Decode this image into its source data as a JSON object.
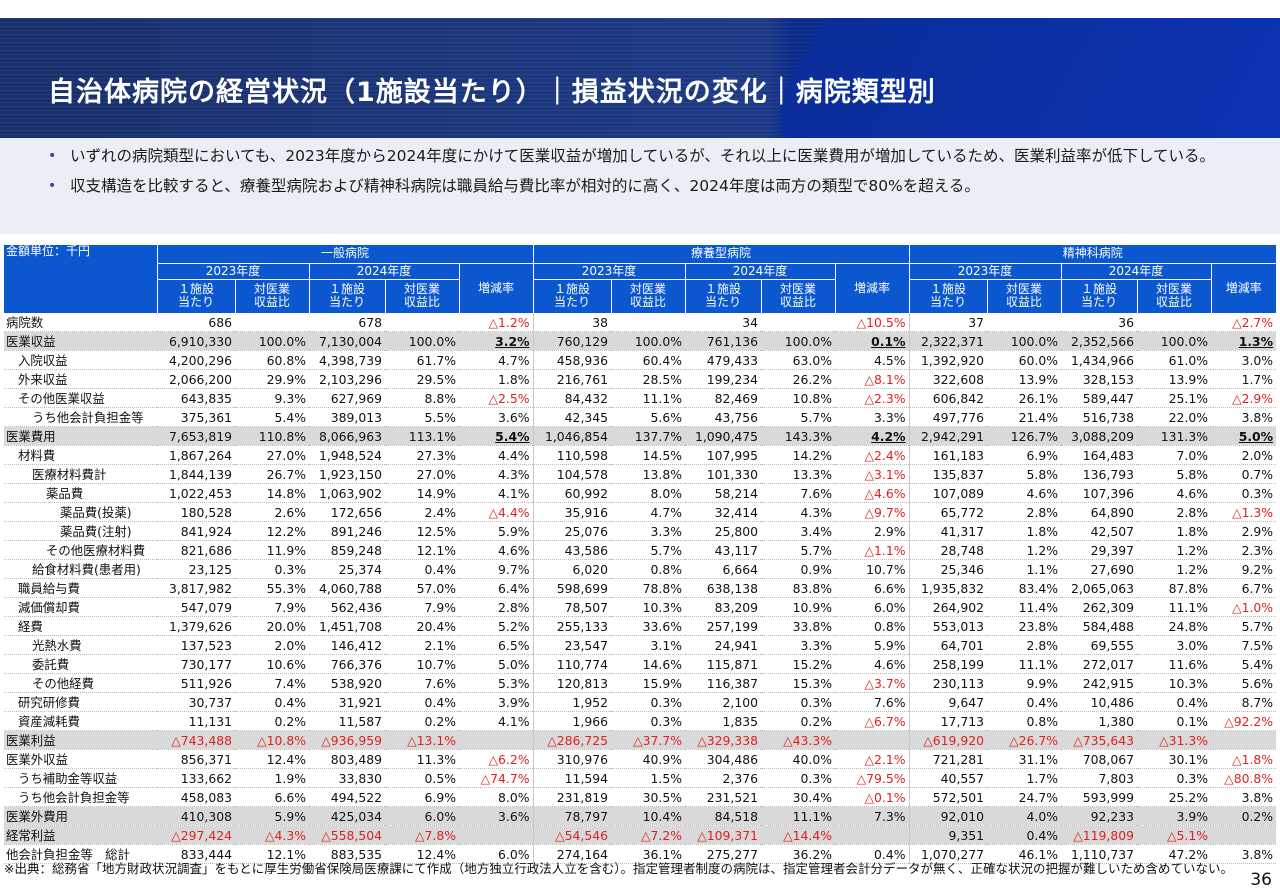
{
  "title": "自治体病院の経営状況（1施設当たり）｜損益状況の変化｜病院類型別",
  "bullets": [
    "いずれの病院類型においても、2023年度から2024年度にかけて医業収益が増加しているが、それ以上に医業費用が増加しているため、医業利益率が低下している。",
    "収支構造を比較すると、療養型病院および精神科病院は職員給与費比率が相対的に高く、2024年度は両方の類型で80%を超える。"
  ],
  "table": {
    "unit": "金額単位：千円",
    "groups": [
      "一般病院",
      "療養型病院",
      "精神科病院"
    ],
    "years": [
      "2023年度",
      "2024年度"
    ],
    "col_per": "１施設当たり",
    "col_ratio": "対医業収益比",
    "col_change": "増減率",
    "rows": [
      {
        "label": "病院数",
        "indent": 0,
        "shade": false,
        "cells": [
          "686",
          "",
          "678",
          "",
          "△1.2%",
          "38",
          "",
          "34",
          "",
          "△10.5%",
          "37",
          "",
          "36",
          "",
          "△2.7%"
        ],
        "styles": [
          "",
          "",
          "",
          "",
          "n",
          "",
          "",
          "",
          "",
          "n",
          "",
          "",
          "",
          "",
          "n"
        ]
      },
      {
        "label": "医業収益",
        "indent": 0,
        "shade": true,
        "cells": [
          "6,910,330",
          "100.0%",
          "7,130,004",
          "100.0%",
          "3.2%",
          "760,129",
          "100.0%",
          "761,136",
          "100.0%",
          "0.1%",
          "2,322,371",
          "100.0%",
          "2,352,566",
          "100.0%",
          "1.3%"
        ],
        "styles": [
          "",
          "",
          "",
          "",
          "b",
          "",
          "",
          "",
          "",
          "b",
          "",
          "",
          "",
          "",
          "b"
        ]
      },
      {
        "label": "入院収益",
        "indent": 1,
        "shade": false,
        "cells": [
          "4,200,296",
          "60.8%",
          "4,398,739",
          "61.7%",
          "4.7%",
          "458,936",
          "60.4%",
          "479,433",
          "63.0%",
          "4.5%",
          "1,392,920",
          "60.0%",
          "1,434,966",
          "61.0%",
          "3.0%"
        ],
        "styles": [
          "",
          "",
          "",
          "",
          "",
          "",
          "",
          "",
          "",
          "",
          "",
          "",
          "",
          "",
          ""
        ]
      },
      {
        "label": "外来収益",
        "indent": 1,
        "shade": false,
        "cells": [
          "2,066,200",
          "29.9%",
          "2,103,296",
          "29.5%",
          "1.8%",
          "216,761",
          "28.5%",
          "199,234",
          "26.2%",
          "△8.1%",
          "322,608",
          "13.9%",
          "328,153",
          "13.9%",
          "1.7%"
        ],
        "styles": [
          "",
          "",
          "",
          "",
          "",
          "",
          "",
          "",
          "",
          "n",
          "",
          "",
          "",
          "",
          ""
        ]
      },
      {
        "label": "その他医業収益",
        "indent": 1,
        "shade": false,
        "cells": [
          "643,835",
          "9.3%",
          "627,969",
          "8.8%",
          "△2.5%",
          "84,432",
          "11.1%",
          "82,469",
          "10.8%",
          "△2.3%",
          "606,842",
          "26.1%",
          "589,447",
          "25.1%",
          "△2.9%"
        ],
        "styles": [
          "",
          "",
          "",
          "",
          "n",
          "",
          "",
          "",
          "",
          "n",
          "",
          "",
          "",
          "",
          "n"
        ]
      },
      {
        "label": "うち他会計負担金等",
        "indent": 2,
        "shade": false,
        "cells": [
          "375,361",
          "5.4%",
          "389,013",
          "5.5%",
          "3.6%",
          "42,345",
          "5.6%",
          "43,756",
          "5.7%",
          "3.3%",
          "497,776",
          "21.4%",
          "516,738",
          "22.0%",
          "3.8%"
        ],
        "styles": [
          "",
          "",
          "",
          "",
          "",
          "",
          "",
          "",
          "",
          "",
          "",
          "",
          "",
          "",
          ""
        ]
      },
      {
        "label": "医業費用",
        "indent": 0,
        "shade": true,
        "cells": [
          "7,653,819",
          "110.8%",
          "8,066,963",
          "113.1%",
          "5.4%",
          "1,046,854",
          "137.7%",
          "1,090,475",
          "143.3%",
          "4.2%",
          "2,942,291",
          "126.7%",
          "3,088,209",
          "131.3%",
          "5.0%"
        ],
        "styles": [
          "",
          "",
          "",
          "",
          "b",
          "",
          "",
          "",
          "",
          "b",
          "",
          "",
          "",
          "",
          "b"
        ]
      },
      {
        "label": "材料費",
        "indent": 1,
        "shade": false,
        "cells": [
          "1,867,264",
          "27.0%",
          "1,948,524",
          "27.3%",
          "4.4%",
          "110,598",
          "14.5%",
          "107,995",
          "14.2%",
          "△2.4%",
          "161,183",
          "6.9%",
          "164,483",
          "7.0%",
          "2.0%"
        ],
        "styles": [
          "",
          "",
          "",
          "",
          "",
          "",
          "",
          "",
          "",
          "n",
          "",
          "",
          "",
          "",
          ""
        ]
      },
      {
        "label": "医療材料費計",
        "indent": 2,
        "shade": false,
        "cells": [
          "1,844,139",
          "26.7%",
          "1,923,150",
          "27.0%",
          "4.3%",
          "104,578",
          "13.8%",
          "101,330",
          "13.3%",
          "△3.1%",
          "135,837",
          "5.8%",
          "136,793",
          "5.8%",
          "0.7%"
        ],
        "styles": [
          "",
          "",
          "",
          "",
          "",
          "",
          "",
          "",
          "",
          "n",
          "",
          "",
          "",
          "",
          ""
        ]
      },
      {
        "label": "薬品費",
        "indent": 3,
        "shade": false,
        "cells": [
          "1,022,453",
          "14.8%",
          "1,063,902",
          "14.9%",
          "4.1%",
          "60,992",
          "8.0%",
          "58,214",
          "7.6%",
          "△4.6%",
          "107,089",
          "4.6%",
          "107,396",
          "4.6%",
          "0.3%"
        ],
        "styles": [
          "",
          "",
          "",
          "",
          "",
          "",
          "",
          "",
          "",
          "n",
          "",
          "",
          "",
          "",
          ""
        ]
      },
      {
        "label": "薬品費(投薬)",
        "indent": 4,
        "shade": false,
        "cells": [
          "180,528",
          "2.6%",
          "172,656",
          "2.4%",
          "△4.4%",
          "35,916",
          "4.7%",
          "32,414",
          "4.3%",
          "△9.7%",
          "65,772",
          "2.8%",
          "64,890",
          "2.8%",
          "△1.3%"
        ],
        "styles": [
          "",
          "",
          "",
          "",
          "n",
          "",
          "",
          "",
          "",
          "n",
          "",
          "",
          "",
          "",
          "n"
        ]
      },
      {
        "label": "薬品費(注射)",
        "indent": 4,
        "shade": false,
        "cells": [
          "841,924",
          "12.2%",
          "891,246",
          "12.5%",
          "5.9%",
          "25,076",
          "3.3%",
          "25,800",
          "3.4%",
          "2.9%",
          "41,317",
          "1.8%",
          "42,507",
          "1.8%",
          "2.9%"
        ],
        "styles": [
          "",
          "",
          "",
          "",
          "",
          "",
          "",
          "",
          "",
          "",
          "",
          "",
          "",
          "",
          ""
        ]
      },
      {
        "label": "その他医療材料費",
        "indent": 3,
        "shade": false,
        "cells": [
          "821,686",
          "11.9%",
          "859,248",
          "12.1%",
          "4.6%",
          "43,586",
          "5.7%",
          "43,117",
          "5.7%",
          "△1.1%",
          "28,748",
          "1.2%",
          "29,397",
          "1.2%",
          "2.3%"
        ],
        "styles": [
          "",
          "",
          "",
          "",
          "",
          "",
          "",
          "",
          "",
          "n",
          "",
          "",
          "",
          "",
          ""
        ]
      },
      {
        "label": "給食材料費(患者用)",
        "indent": 2,
        "shade": false,
        "cells": [
          "23,125",
          "0.3%",
          "25,374",
          "0.4%",
          "9.7%",
          "6,020",
          "0.8%",
          "6,664",
          "0.9%",
          "10.7%",
          "25,346",
          "1.1%",
          "27,690",
          "1.2%",
          "9.2%"
        ],
        "styles": [
          "",
          "",
          "",
          "",
          "",
          "",
          "",
          "",
          "",
          "",
          "",
          "",
          "",
          "",
          ""
        ]
      },
      {
        "label": "職員給与費",
        "indent": 1,
        "shade": false,
        "cells": [
          "3,817,982",
          "55.3%",
          "4,060,788",
          "57.0%",
          "6.4%",
          "598,699",
          "78.8%",
          "638,138",
          "83.8%",
          "6.6%",
          "1,935,832",
          "83.4%",
          "2,065,063",
          "87.8%",
          "6.7%"
        ],
        "styles": [
          "",
          "",
          "",
          "",
          "",
          "",
          "",
          "",
          "",
          "",
          "",
          "",
          "",
          "",
          ""
        ]
      },
      {
        "label": "減価償却費",
        "indent": 1,
        "shade": false,
        "cells": [
          "547,079",
          "7.9%",
          "562,436",
          "7.9%",
          "2.8%",
          "78,507",
          "10.3%",
          "83,209",
          "10.9%",
          "6.0%",
          "264,902",
          "11.4%",
          "262,309",
          "11.1%",
          "△1.0%"
        ],
        "styles": [
          "",
          "",
          "",
          "",
          "",
          "",
          "",
          "",
          "",
          "",
          "",
          "",
          "",
          "",
          "n"
        ]
      },
      {
        "label": "経費",
        "indent": 1,
        "shade": false,
        "cells": [
          "1,379,626",
          "20.0%",
          "1,451,708",
          "20.4%",
          "5.2%",
          "255,133",
          "33.6%",
          "257,199",
          "33.8%",
          "0.8%",
          "553,013",
          "23.8%",
          "584,488",
          "24.8%",
          "5.7%"
        ],
        "styles": [
          "",
          "",
          "",
          "",
          "",
          "",
          "",
          "",
          "",
          "",
          "",
          "",
          "",
          "",
          ""
        ]
      },
      {
        "label": "光熱水費",
        "indent": 2,
        "shade": false,
        "cells": [
          "137,523",
          "2.0%",
          "146,412",
          "2.1%",
          "6.5%",
          "23,547",
          "3.1%",
          "24,941",
          "3.3%",
          "5.9%",
          "64,701",
          "2.8%",
          "69,555",
          "3.0%",
          "7.5%"
        ],
        "styles": [
          "",
          "",
          "",
          "",
          "",
          "",
          "",
          "",
          "",
          "",
          "",
          "",
          "",
          "",
          ""
        ]
      },
      {
        "label": "委託費",
        "indent": 2,
        "shade": false,
        "cells": [
          "730,177",
          "10.6%",
          "766,376",
          "10.7%",
          "5.0%",
          "110,774",
          "14.6%",
          "115,871",
          "15.2%",
          "4.6%",
          "258,199",
          "11.1%",
          "272,017",
          "11.6%",
          "5.4%"
        ],
        "styles": [
          "",
          "",
          "",
          "",
          "",
          "",
          "",
          "",
          "",
          "",
          "",
          "",
          "",
          "",
          ""
        ]
      },
      {
        "label": "その他経費",
        "indent": 2,
        "shade": false,
        "cells": [
          "511,926",
          "7.4%",
          "538,920",
          "7.6%",
          "5.3%",
          "120,813",
          "15.9%",
          "116,387",
          "15.3%",
          "△3.7%",
          "230,113",
          "9.9%",
          "242,915",
          "10.3%",
          "5.6%"
        ],
        "styles": [
          "",
          "",
          "",
          "",
          "",
          "",
          "",
          "",
          "",
          "n",
          "",
          "",
          "",
          "",
          ""
        ]
      },
      {
        "label": "研究研修費",
        "indent": 1,
        "shade": false,
        "cells": [
          "30,737",
          "0.4%",
          "31,921",
          "0.4%",
          "3.9%",
          "1,952",
          "0.3%",
          "2,100",
          "0.3%",
          "7.6%",
          "9,647",
          "0.4%",
          "10,486",
          "0.4%",
          "8.7%"
        ],
        "styles": [
          "",
          "",
          "",
          "",
          "",
          "",
          "",
          "",
          "",
          "",
          "",
          "",
          "",
          "",
          ""
        ]
      },
      {
        "label": "資産減耗費",
        "indent": 1,
        "shade": false,
        "cells": [
          "11,131",
          "0.2%",
          "11,587",
          "0.2%",
          "4.1%",
          "1,966",
          "0.3%",
          "1,835",
          "0.2%",
          "△6.7%",
          "17,713",
          "0.8%",
          "1,380",
          "0.1%",
          "△92.2%"
        ],
        "styles": [
          "",
          "",
          "",
          "",
          "",
          "",
          "",
          "",
          "",
          "n",
          "",
          "",
          "",
          "",
          "n"
        ]
      },
      {
        "label": "医業利益",
        "indent": 0,
        "shade": true,
        "cells": [
          "△743,488",
          "△10.8%",
          "△936,959",
          "△13.1%",
          "",
          "△286,725",
          "△37.7%",
          "△329,338",
          "△43.3%",
          "",
          "△619,920",
          "△26.7%",
          "△735,643",
          "△31.3%",
          ""
        ],
        "styles": [
          "n",
          "n",
          "n",
          "n",
          "",
          "n",
          "n",
          "n",
          "n",
          "",
          "n",
          "n",
          "n",
          "n",
          ""
        ]
      },
      {
        "label": "医業外収益",
        "indent": 0,
        "shade": false,
        "cells": [
          "856,371",
          "12.4%",
          "803,489",
          "11.3%",
          "△6.2%",
          "310,976",
          "40.9%",
          "304,486",
          "40.0%",
          "△2.1%",
          "721,281",
          "31.1%",
          "708,067",
          "30.1%",
          "△1.8%"
        ],
        "styles": [
          "",
          "",
          "",
          "",
          "n",
          "",
          "",
          "",
          "",
          "n",
          "",
          "",
          "",
          "",
          "n"
        ]
      },
      {
        "label": "うち補助金等収益",
        "indent": 1,
        "shade": false,
        "cells": [
          "133,662",
          "1.9%",
          "33,830",
          "0.5%",
          "△74.7%",
          "11,594",
          "1.5%",
          "2,376",
          "0.3%",
          "△79.5%",
          "40,557",
          "1.7%",
          "7,803",
          "0.3%",
          "△80.8%"
        ],
        "styles": [
          "",
          "",
          "",
          "",
          "n",
          "",
          "",
          "",
          "",
          "n",
          "",
          "",
          "",
          "",
          "n"
        ]
      },
      {
        "label": "うち他会計負担金等",
        "indent": 1,
        "shade": false,
        "cells": [
          "458,083",
          "6.6%",
          "494,522",
          "6.9%",
          "8.0%",
          "231,819",
          "30.5%",
          "231,521",
          "30.4%",
          "△0.1%",
          "572,501",
          "24.7%",
          "593,999",
          "25.2%",
          "3.8%"
        ],
        "styles": [
          "",
          "",
          "",
          "",
          "",
          "",
          "",
          "",
          "",
          "n",
          "",
          "",
          "",
          "",
          ""
        ]
      },
      {
        "label": "医業外費用",
        "indent": 0,
        "shade": true,
        "cells": [
          "410,308",
          "5.9%",
          "425,034",
          "6.0%",
          "3.6%",
          "78,797",
          "10.4%",
          "84,518",
          "11.1%",
          "7.3%",
          "92,010",
          "4.0%",
          "92,233",
          "3.9%",
          "0.2%"
        ],
        "styles": [
          "",
          "",
          "",
          "",
          "",
          "",
          "",
          "",
          "",
          "",
          "",
          "",
          "",
          "",
          ""
        ]
      },
      {
        "label": "経常利益",
        "indent": 0,
        "shade": true,
        "cells": [
          "△297,424",
          "△4.3%",
          "△558,504",
          "△7.8%",
          "",
          "△54,546",
          "△7.2%",
          "△109,371",
          "△14.4%",
          "",
          "9,351",
          "0.4%",
          "△119,809",
          "△5.1%",
          ""
        ],
        "styles": [
          "n",
          "n",
          "n",
          "n",
          "",
          "n",
          "n",
          "n",
          "n",
          "",
          "",
          "",
          "n",
          "n",
          ""
        ]
      },
      {
        "label": "他会計負担金等　総計",
        "indent": 0,
        "shade": false,
        "cells": [
          "833,444",
          "12.1%",
          "883,535",
          "12.4%",
          "6.0%",
          "274,164",
          "36.1%",
          "275,277",
          "36.2%",
          "0.4%",
          "1,070,277",
          "46.1%",
          "1,110,737",
          "47.2%",
          "3.8%"
        ],
        "styles": [
          "",
          "",
          "",
          "",
          "",
          "",
          "",
          "",
          "",
          "",
          "",
          "",
          "",
          "",
          ""
        ]
      }
    ]
  },
  "footnote": "※出典：総務省「地方財政状況調査」をもとに厚生労働省保険局医療課にて作成（地方独立行政法人立を含む）。指定管理者制度の病院は、指定管理者会計分データが無く、正確な状況の把握が難しいため含めていない。",
  "page_number": "36"
}
